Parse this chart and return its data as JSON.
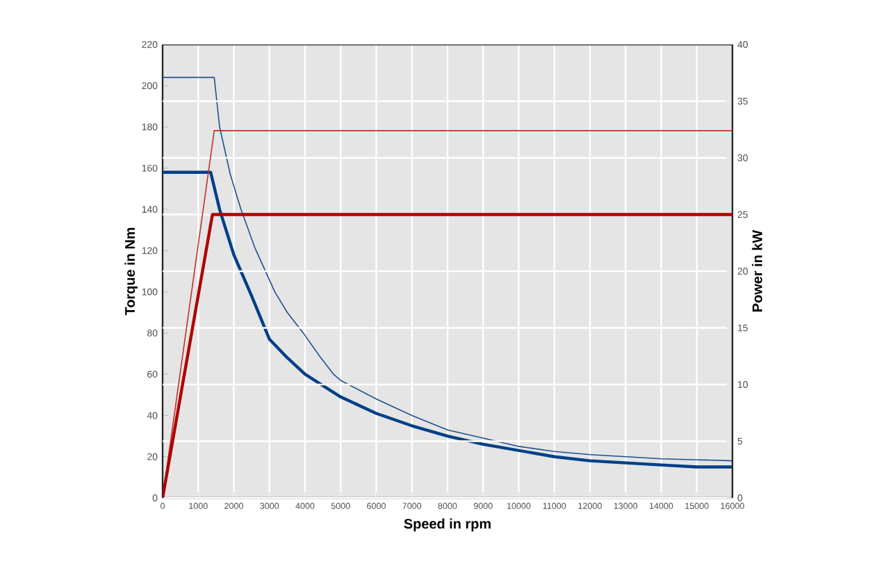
{
  "chart_data": {
    "type": "line",
    "xlabel": "Speed in rpm",
    "ylabel": "Torque in Nm",
    "y2label": "Power in kW",
    "xlim": [
      0,
      16000
    ],
    "xticks": [
      0,
      1000,
      2000,
      3000,
      4000,
      5000,
      6000,
      7000,
      8000,
      9000,
      10000,
      11000,
      12000,
      13000,
      14000,
      15000,
      16000
    ],
    "ylim": [
      0,
      220
    ],
    "yticks": [
      0,
      20,
      40,
      60,
      80,
      100,
      120,
      140,
      160,
      180,
      200,
      220
    ],
    "y2lim": [
      0,
      40
    ],
    "y2ticks": [
      0,
      5,
      10,
      15,
      20,
      25,
      30,
      35,
      40
    ],
    "grid": true,
    "marker": "none",
    "line_style": "solid",
    "series": [
      {
        "color": "#1f4f8f",
        "axis": "y",
        "x": [
          0,
          1450,
          1600,
          1900,
          2200,
          2600,
          3150,
          3500,
          3950,
          4400,
          4800,
          5000,
          6000,
          7000,
          8000,
          9000,
          10000,
          11000,
          12000,
          13000,
          14000,
          15000,
          16000
        ],
        "values": [
          204,
          204,
          180,
          157,
          140,
          121,
          100,
          90,
          80,
          69,
          60,
          57,
          48,
          40,
          33,
          29,
          25,
          22.5,
          21,
          20,
          19,
          18.5,
          18
        ]
      },
      {
        "color": "#003f87",
        "axis": "y",
        "x": [
          0,
          1350,
          1600,
          2000,
          2500,
          3000,
          3500,
          4000,
          5000,
          6000,
          7000,
          8000,
          9000,
          10000,
          11000,
          12000,
          13000,
          14000,
          15000,
          16000
        ],
        "values": [
          158,
          158,
          140,
          118,
          98,
          77,
          68,
          60,
          49,
          41,
          35,
          30,
          26,
          23,
          20,
          18,
          17,
          16,
          15,
          15
        ]
      },
      {
        "color": "#c0302a",
        "axis": "y2",
        "x": [
          0,
          1450,
          16000
        ],
        "values": [
          0,
          32.4,
          32.4
        ]
      },
      {
        "color": "#b00000",
        "axis": "y2",
        "x": [
          0,
          1400,
          16000
        ],
        "values": [
          0,
          25,
          25
        ]
      }
    ]
  }
}
